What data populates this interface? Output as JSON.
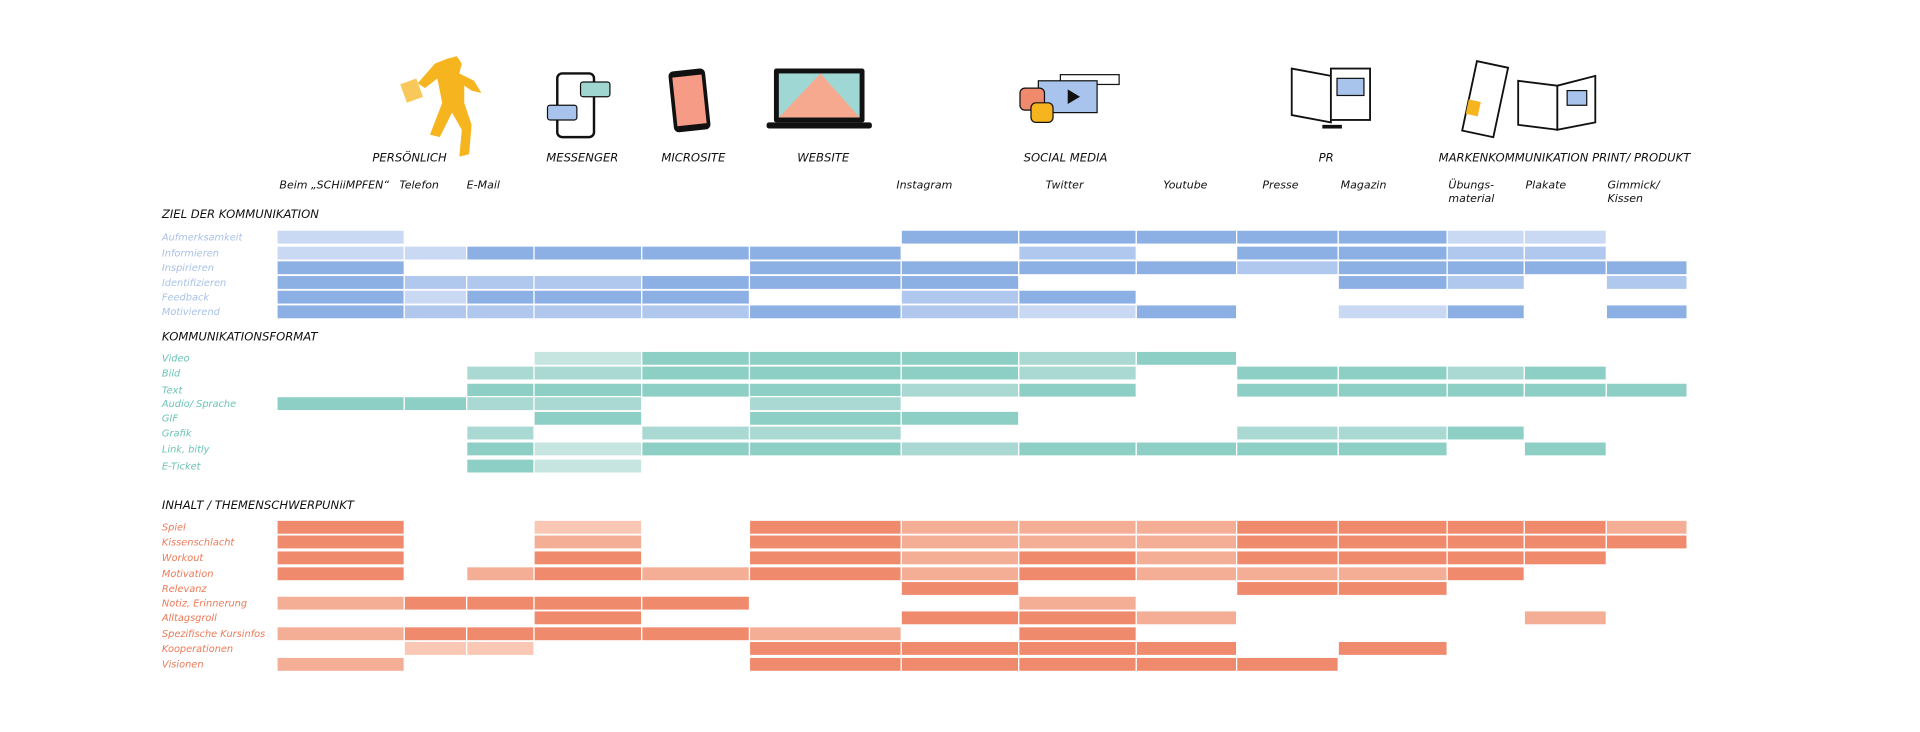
{
  "groups": [
    "PERSÖNLICH",
    "MESSENGER",
    "MICROSITE",
    "WEBSITE",
    "SOCIAL MEDIA",
    "PR",
    "MARKENKOMMUNIKATION PRINT/ PRODUKT"
  ],
  "columns": [
    "Beim „SCHiiMPFEN“",
    "Telefon",
    "E-Mail",
    null,
    null,
    null,
    "Instagram",
    "Twitter",
    "Youtube",
    "Presse",
    "Magazin",
    "Übungs-\nmaterial",
    "Plakate",
    "Gimmick/\nKissen"
  ],
  "sections": [
    {
      "title": "ZIEL DER KOMMUNIKATION",
      "label_color": "#a9c1e8",
      "colors": [
        "#c9d9f3",
        "#b0c7ee",
        "#8db0e4"
      ],
      "rows": [
        {
          "label": "Aufmerksamkeit",
          "levels": [
            1,
            0,
            0,
            0,
            0,
            0,
            3,
            3,
            3,
            3,
            3,
            1,
            1,
            0
          ]
        },
        {
          "label": "Informieren",
          "levels": [
            1,
            1,
            3,
            3,
            3,
            3,
            0,
            2,
            0,
            3,
            3,
            2,
            2,
            0
          ]
        },
        {
          "label": "Inspirieren",
          "levels": [
            3,
            0,
            0,
            0,
            0,
            3,
            3,
            3,
            3,
            2,
            3,
            3,
            3,
            3
          ]
        },
        {
          "label": "Identifizieren",
          "levels": [
            3,
            2,
            2,
            2,
            3,
            3,
            3,
            0,
            0,
            0,
            3,
            2,
            0,
            2
          ]
        },
        {
          "label": "Feedback",
          "levels": [
            3,
            1,
            3,
            3,
            3,
            0,
            2,
            3,
            0,
            0,
            0,
            0,
            0,
            0
          ]
        },
        {
          "label": "Motivierend",
          "levels": [
            3,
            2,
            2,
            2,
            2,
            3,
            2,
            1,
            3,
            0,
            1,
            3,
            0,
            3
          ]
        }
      ]
    },
    {
      "title": "KOMMUNIKATIONSFORMAT",
      "label_color": "#6cc3b6",
      "colors": [
        "#c6e5e1",
        "#a9d9d2",
        "#8ecfc5"
      ],
      "rows": [
        {
          "label": "Video",
          "levels": [
            0,
            0,
            0,
            1,
            3,
            3,
            3,
            2,
            3,
            0,
            0,
            0,
            0,
            0
          ]
        },
        {
          "label": "Bild",
          "levels": [
            0,
            0,
            2,
            2,
            3,
            3,
            3,
            2,
            0,
            3,
            3,
            2,
            3,
            0
          ]
        },
        {
          "label": "Text",
          "levels": [
            0,
            0,
            3,
            3,
            3,
            3,
            2,
            3,
            0,
            3,
            3,
            3,
            3,
            3
          ]
        },
        {
          "label": "Audio/ Sprache",
          "levels": [
            3,
            3,
            2,
            2,
            0,
            2,
            0,
            0,
            0,
            0,
            0,
            0,
            0,
            0
          ]
        },
        {
          "label": "GIF",
          "levels": [
            0,
            0,
            0,
            3,
            0,
            3,
            3,
            0,
            0,
            0,
            0,
            0,
            0,
            0
          ]
        },
        {
          "label": "Grafik",
          "levels": [
            0,
            0,
            2,
            0,
            2,
            2,
            0,
            0,
            0,
            2,
            2,
            3,
            0,
            0
          ]
        },
        {
          "label": "Link, bitly",
          "levels": [
            0,
            0,
            3,
            1,
            3,
            3,
            2,
            3,
            3,
            3,
            3,
            0,
            3,
            0
          ]
        },
        {
          "label": "E-Ticket",
          "levels": [
            0,
            0,
            3,
            1,
            0,
            0,
            0,
            0,
            0,
            0,
            0,
            0,
            0,
            0
          ]
        }
      ]
    },
    {
      "title": "INHALT / THEMENSCHWERPUNKT",
      "label_color": "#ec7a58",
      "colors": [
        "#f9c7b4",
        "#f4ae96",
        "#f08a6d"
      ],
      "rows": [
        {
          "label": "Spiel",
          "levels": [
            3,
            0,
            0,
            1,
            0,
            3,
            2,
            2,
            2,
            3,
            3,
            3,
            3,
            2
          ]
        },
        {
          "label": "Kissenschlacht",
          "levels": [
            3,
            0,
            0,
            2,
            0,
            3,
            2,
            2,
            2,
            3,
            3,
            3,
            3,
            3
          ]
        },
        {
          "label": "Workout",
          "levels": [
            3,
            0,
            0,
            3,
            0,
            3,
            2,
            3,
            2,
            3,
            3,
            3,
            3,
            0
          ]
        },
        {
          "label": "Motivation",
          "levels": [
            3,
            0,
            2,
            3,
            2,
            3,
            2,
            3,
            2,
            2,
            2,
            3,
            0,
            0
          ]
        },
        {
          "label": "Relevanz",
          "levels": [
            0,
            0,
            0,
            0,
            0,
            0,
            3,
            0,
            0,
            3,
            3,
            0,
            0,
            0
          ]
        },
        {
          "label": "Notiz, Erinnerung",
          "levels": [
            2,
            3,
            3,
            3,
            3,
            0,
            0,
            2,
            0,
            0,
            0,
            0,
            0,
            0
          ]
        },
        {
          "label": "Alltagsgroll",
          "levels": [
            0,
            0,
            0,
            3,
            0,
            0,
            3,
            3,
            2,
            0,
            0,
            0,
            2,
            0
          ]
        },
        {
          "label": "Spezifische Kursinfos",
          "levels": [
            2,
            3,
            3,
            3,
            3,
            2,
            0,
            3,
            0,
            0,
            0,
            0,
            0,
            0
          ]
        },
        {
          "label": "Kooperationen",
          "levels": [
            0,
            1,
            1,
            0,
            0,
            3,
            3,
            3,
            3,
            0,
            3,
            0,
            0,
            0
          ]
        },
        {
          "label": "Visionen",
          "levels": [
            2,
            0,
            0,
            0,
            0,
            3,
            3,
            3,
            3,
            3,
            0,
            0,
            0,
            0
          ]
        }
      ]
    }
  ]
}
